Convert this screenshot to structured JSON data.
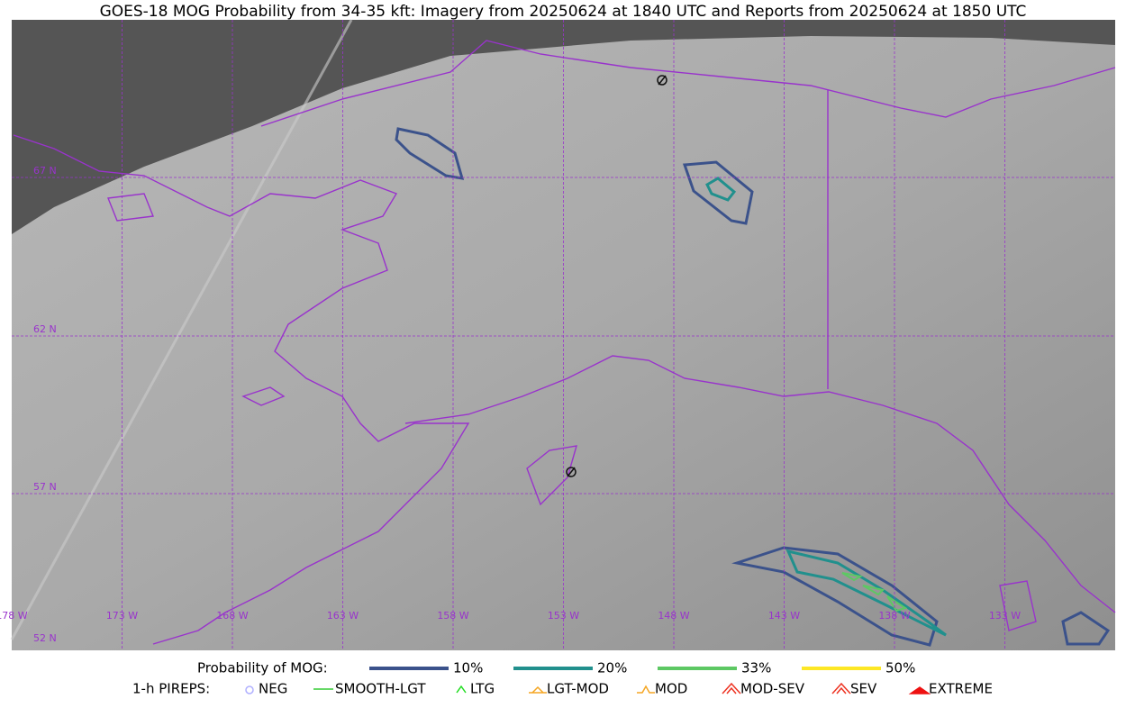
{
  "title": "GOES-18 MOG Probability from 34-35 kft: Imagery from 20250624 at 1840 UTC and Reports from 20250624 at 1850 UTC",
  "map": {
    "lat_labels": [
      "67 N",
      "62 N",
      "57 N",
      "52 N"
    ],
    "lon_labels": [
      "178 W",
      "173 W",
      "168 W",
      "163 W",
      "158 W",
      "153 W",
      "148 W",
      "143 W",
      "138 W",
      "133 W"
    ]
  },
  "legend": {
    "probability": {
      "label": "Probability of MOG:",
      "items": [
        {
          "label": "10%",
          "color": "#3b528b"
        },
        {
          "label": "20%",
          "color": "#21908d"
        },
        {
          "label": "33%",
          "color": "#5dc863"
        },
        {
          "label": "50%",
          "color": "#fde725"
        }
      ]
    },
    "pireps": {
      "label": "1-h PIREPS:",
      "items": [
        {
          "label": "NEG",
          "color": "#b0b0ff"
        },
        {
          "label": "SMOOTH-LGT",
          "color": "#33cc33"
        },
        {
          "label": "LTG",
          "color": "#22dd22"
        },
        {
          "label": "LGT-MOD",
          "color": "#f5a623"
        },
        {
          "label": "MOD",
          "color": "#f5a623"
        },
        {
          "label": "MOD-SEV",
          "color": "#ee3322"
        },
        {
          "label": "SEV",
          "color": "#ee3322"
        },
        {
          "label": "EXTREME",
          "color": "#ee1111"
        }
      ]
    }
  }
}
